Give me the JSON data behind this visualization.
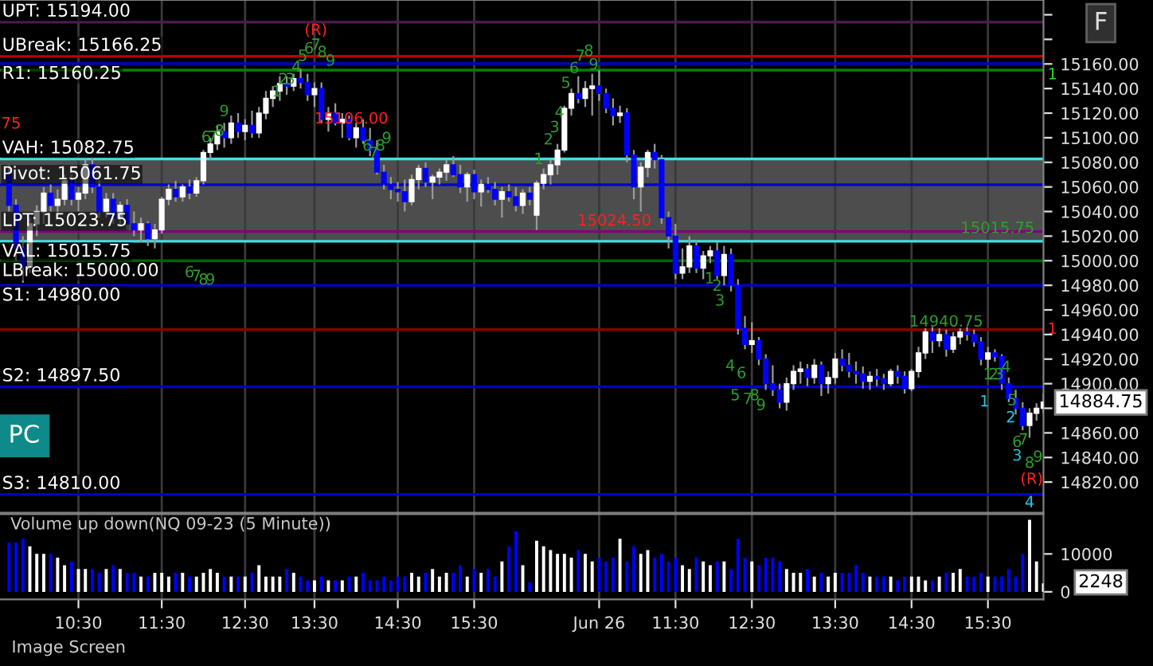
{
  "chart_data": [
    {
      "type": "candlestick",
      "categories": [
        null,
        null,
        null,
        null,
        null,
        null,
        null,
        null,
        null,
        null,
        null,
        null,
        null,
        null,
        null,
        null,
        null,
        null,
        null,
        null,
        null,
        null,
        null,
        null,
        null,
        null,
        null,
        null,
        null,
        null,
        null,
        null,
        null,
        null,
        null,
        null,
        null,
        null,
        null,
        null,
        null,
        null,
        null,
        null,
        null,
        null,
        null,
        null,
        null,
        null,
        null,
        null,
        null,
        null,
        null,
        null,
        null,
        null,
        null,
        null,
        null,
        null,
        null,
        null,
        null,
        null,
        null,
        null,
        null,
        null,
        null,
        null,
        null,
        null,
        null,
        null,
        null,
        null,
        null,
        null,
        null,
        null,
        null,
        null,
        null,
        null,
        null,
        null,
        null,
        null,
        null,
        null,
        null,
        null,
        null,
        null,
        null,
        null,
        null,
        null,
        null,
        null,
        null,
        null,
        null,
        null,
        null,
        null,
        null,
        null,
        null,
        null,
        null,
        null,
        null,
        null,
        null,
        null,
        null,
        null,
        null,
        null,
        null,
        null,
        null,
        null,
        null,
        null,
        null,
        null,
        null,
        null,
        null,
        null,
        null,
        null,
        null,
        null,
        null,
        null,
        null,
        null,
        null,
        null,
        null,
        null,
        null,
        null,
        null,
        null
      ],
      "ohlc": [
        [
          15070,
          15078,
          15040,
          15045
        ],
        [
          15045,
          15050,
          15000,
          15010
        ],
        [
          15010,
          15020,
          14982,
          14995
        ],
        [
          14995,
          15035,
          14990,
          15030
        ],
        [
          15030,
          15045,
          15020,
          15040
        ],
        [
          15040,
          15060,
          15030,
          15055
        ],
        [
          15055,
          15062,
          15040,
          15045
        ],
        [
          15045,
          15058,
          15035,
          15050
        ],
        [
          15050,
          15070,
          15045,
          15065
        ],
        [
          15065,
          15070,
          15045,
          15050
        ],
        [
          15050,
          15060,
          15040,
          15055
        ],
        [
          15055,
          15082,
          15050,
          15078
        ],
        [
          15078,
          15084,
          15055,
          15060
        ],
        [
          15060,
          15065,
          15035,
          15040
        ],
        [
          15040,
          15055,
          15035,
          15050
        ],
        [
          15050,
          15055,
          15030,
          15035
        ],
        [
          15035,
          15048,
          15028,
          15045
        ],
        [
          15045,
          15050,
          15025,
          15030
        ],
        [
          15030,
          15040,
          15020,
          15025
        ],
        [
          15025,
          15035,
          15015,
          15030
        ],
        [
          15030,
          15032,
          15012,
          15018
        ],
        [
          15018,
          15030,
          15010,
          15025
        ],
        [
          15025,
          15052,
          15022,
          15050
        ],
        [
          15050,
          15062,
          15045,
          15058
        ],
        [
          15058,
          15065,
          15048,
          15052
        ],
        [
          15052,
          15062,
          15048,
          15060
        ],
        [
          15060,
          15066,
          15050,
          15055
        ],
        [
          15055,
          15068,
          15052,
          15065
        ],
        [
          15065,
          15090,
          15062,
          15088
        ],
        [
          15088,
          15100,
          15082,
          15095
        ],
        [
          15095,
          15110,
          15090,
          15105
        ],
        [
          15105,
          15112,
          15092,
          15100
        ],
        [
          15100,
          15118,
          15095,
          15112
        ],
        [
          15112,
          15120,
          15100,
          15105
        ],
        [
          15105,
          15115,
          15098,
          15110
        ],
        [
          15110,
          15122,
          15100,
          15104
        ],
        [
          15104,
          15125,
          15100,
          15120
        ],
        [
          15120,
          15138,
          15115,
          15132
        ],
        [
          15132,
          15142,
          15125,
          15138
        ],
        [
          15138,
          15150,
          15130,
          15144
        ],
        [
          15144,
          15150,
          15135,
          15142
        ],
        [
          15142,
          15152,
          15138,
          15148
        ],
        [
          15148,
          15156,
          15140,
          15145
        ],
        [
          15145,
          15152,
          15130,
          15135
        ],
        [
          15135,
          15145,
          15125,
          15140
        ],
        [
          15140,
          15145,
          15112,
          15115
        ],
        [
          15115,
          15125,
          15105,
          15120
        ],
        [
          15120,
          15128,
          15110,
          15112
        ],
        [
          15112,
          15120,
          15100,
          15115
        ],
        [
          15115,
          15118,
          15098,
          15100
        ],
        [
          15100,
          15112,
          15092,
          15108
        ],
        [
          15108,
          15115,
          15095,
          15098
        ],
        [
          15098,
          15108,
          15085,
          15090
        ],
        [
          15090,
          15098,
          15070,
          15072
        ],
        [
          15072,
          15078,
          15058,
          15062
        ],
        [
          15062,
          15068,
          15050,
          15058
        ],
        [
          15058,
          15064,
          15048,
          15056
        ],
        [
          15056,
          15066,
          15040,
          15048
        ],
        [
          15048,
          15070,
          15045,
          15066
        ],
        [
          15066,
          15078,
          15058,
          15075
        ],
        [
          15075,
          15080,
          15060,
          15064
        ],
        [
          15064,
          15070,
          15050,
          15068
        ],
        [
          15068,
          15075,
          15062,
          15072
        ],
        [
          15072,
          15082,
          15065,
          15078
        ],
        [
          15078,
          15085,
          15068,
          15070
        ],
        [
          15070,
          15078,
          15055,
          15060
        ],
        [
          15060,
          15072,
          15048,
          15070
        ],
        [
          15070,
          15074,
          15050,
          15056
        ],
        [
          15056,
          15066,
          15044,
          15062
        ],
        [
          15062,
          15068,
          15055,
          15058
        ],
        [
          15058,
          15064,
          15045,
          15050
        ],
        [
          15050,
          15060,
          15035,
          15056
        ],
        [
          15056,
          15062,
          15048,
          15052
        ],
        [
          15052,
          15060,
          15040,
          15045
        ],
        [
          15045,
          15058,
          15038,
          15055
        ],
        [
          15055,
          15060,
          15045,
          15050
        ],
        [
          15037,
          15065,
          15025,
          15063
        ],
        [
          15063,
          15075,
          15058,
          15070
        ],
        [
          15070,
          15082,
          15062,
          15078
        ],
        [
          15078,
          15095,
          15070,
          15090
        ],
        [
          15090,
          15126,
          15088,
          15124
        ],
        [
          15124,
          15140,
          15118,
          15136
        ],
        [
          15136,
          15150,
          15128,
          15132
        ],
        [
          15132,
          15146,
          15125,
          15140
        ],
        [
          15140,
          15152,
          15118,
          15142
        ],
        [
          15142,
          15155,
          15130,
          15136
        ],
        [
          15136,
          15140,
          15120,
          15124
        ],
        [
          15124,
          15132,
          15110,
          15118
        ],
        [
          15118,
          15126,
          15112,
          15120
        ],
        [
          15120,
          15124,
          15080,
          15086
        ],
        [
          15086,
          15090,
          15050,
          15060
        ],
        [
          15060,
          15080,
          15040,
          15076
        ],
        [
          15076,
          15090,
          15068,
          15088
        ],
        [
          15088,
          15095,
          15075,
          15082
        ],
        [
          15082,
          15086,
          15030,
          15035
        ],
        [
          15035,
          15040,
          15010,
          15020
        ],
        [
          15020,
          15030,
          14985,
          14990
        ],
        [
          14990,
          15010,
          14985,
          14995
        ],
        [
          14995,
          15020,
          14990,
          15012
        ],
        [
          15012,
          15016,
          14990,
          14994
        ],
        [
          14994,
          15008,
          14985,
          15004
        ],
        [
          15004,
          15012,
          14998,
          15008
        ],
        [
          15008,
          15015,
          14985,
          14988
        ],
        [
          14988,
          15012,
          14980,
          15005
        ],
        [
          15005,
          15010,
          14975,
          14980
        ],
        [
          14980,
          14985,
          14940,
          14945
        ],
        [
          14945,
          14955,
          14928,
          14932
        ],
        [
          14932,
          14950,
          14925,
          14935
        ],
        [
          14935,
          14938,
          14915,
          14920
        ],
        [
          14920,
          14924,
          14895,
          14900
        ],
        [
          14900,
          14915,
          14890,
          14895
        ],
        [
          14895,
          14900,
          14880,
          14885
        ],
        [
          14885,
          14905,
          14878,
          14900
        ],
        [
          14900,
          14915,
          14895,
          14910
        ],
        [
          14910,
          14918,
          14900,
          14912
        ],
        [
          14912,
          14916,
          14898,
          14905
        ],
        [
          14905,
          14920,
          14900,
          14915
        ],
        [
          14915,
          14918,
          14890,
          14900
        ],
        [
          14900,
          14910,
          14892,
          14905
        ],
        [
          14905,
          14925,
          14900,
          14920
        ],
        [
          14920,
          14928,
          14910,
          14915
        ],
        [
          14915,
          14925,
          14905,
          14910
        ],
        [
          14910,
          14918,
          14900,
          14908
        ],
        [
          14908,
          14914,
          14896,
          14902
        ],
        [
          14902,
          14910,
          14895,
          14906
        ],
        [
          14906,
          14912,
          14898,
          14904
        ],
        [
          14904,
          14908,
          14895,
          14900
        ],
        [
          14900,
          14912,
          14898,
          14910
        ],
        [
          14910,
          14915,
          14900,
          14906
        ],
        [
          14906,
          14910,
          14892,
          14896
        ],
        [
          14896,
          14912,
          14894,
          14910
        ],
        [
          14910,
          14930,
          14905,
          14925
        ],
        [
          14925,
          14945,
          14920,
          14942
        ],
        [
          14942,
          14946,
          14925,
          14935
        ],
        [
          14935,
          14945,
          14930,
          14940
        ],
        [
          14940,
          14944,
          14922,
          14928
        ],
        [
          14928,
          14942,
          14925,
          14938
        ],
        [
          14938,
          14945,
          14932,
          14942
        ],
        [
          14942,
          14946,
          14935,
          14940
        ],
        [
          14940,
          14944,
          14930,
          14934
        ],
        [
          14934,
          14938,
          14915,
          14920
        ],
        [
          14920,
          14930,
          14912,
          14925
        ],
        [
          14925,
          14928,
          14918,
          14922
        ],
        [
          14922,
          14924,
          14895,
          14900
        ],
        [
          14900,
          14905,
          14885,
          14888
        ],
        [
          14888,
          14895,
          14875,
          14880
        ],
        [
          14880,
          14885,
          14862,
          14866
        ],
        [
          14866,
          14880,
          14856,
          14876
        ],
        [
          14876,
          14884,
          14870,
          14880
        ],
        [
          14880,
          14892,
          14876,
          14885
        ]
      ],
      "colors": [
        "#0000ff",
        "#0000ff",
        "#0000ff",
        "#ffffff",
        "#ffffff",
        "#ffffff",
        "#0000ff",
        "#ffffff",
        "#ffffff",
        "#0000ff",
        "#ffffff",
        "#ffffff",
        "#0000ff",
        "#0000ff",
        "#ffffff",
        "#0000ff",
        "#ffffff",
        "#0000ff",
        "#0000ff",
        "#ffffff",
        "#0000ff",
        "#ffffff",
        "#ffffff",
        "#ffffff",
        "#0000ff",
        "#ffffff",
        "#0000ff",
        "#ffffff",
        "#ffffff",
        "#ffffff",
        "#ffffff",
        "#0000ff",
        "#ffffff",
        "#0000ff",
        "#ffffff",
        "#0000ff",
        "#ffffff",
        "#ffffff",
        "#ffffff",
        "#ffffff",
        "#0000ff",
        "#ffffff",
        "#0000ff",
        "#0000ff",
        "#ffffff",
        "#0000ff",
        "#ffffff",
        "#0000ff",
        "#ffffff",
        "#0000ff",
        "#ffffff",
        "#0000ff",
        "#0000ff",
        "#0000ff",
        "#0000ff",
        "#0000ff",
        "#0000ff",
        "#0000ff",
        "#ffffff",
        "#ffffff",
        "#0000ff",
        "#ffffff",
        "#ffffff",
        "#ffffff",
        "#0000ff",
        "#0000ff",
        "#ffffff",
        "#0000ff",
        "#ffffff",
        "#0000ff",
        "#0000ff",
        "#ffffff",
        "#0000ff",
        "#0000ff",
        "#ffffff",
        "#0000ff",
        "#ffffff",
        "#ffffff",
        "#ffffff",
        "#ffffff",
        "#ffffff",
        "#ffffff",
        "#0000ff",
        "#ffffff",
        "#ffffff",
        "#0000ff",
        "#0000ff",
        "#0000ff",
        "#ffffff",
        "#0000ff",
        "#0000ff",
        "#ffffff",
        "#ffffff",
        "#0000ff",
        "#0000ff",
        "#0000ff",
        "#0000ff",
        "#ffffff",
        "#ffffff",
        "#0000ff",
        "#ffffff",
        "#ffffff",
        "#0000ff",
        "#ffffff",
        "#0000ff",
        "#0000ff",
        "#0000ff",
        "#ffffff",
        "#0000ff",
        "#0000ff",
        "#0000ff",
        "#0000ff",
        "#ffffff",
        "#ffffff",
        "#ffffff",
        "#0000ff",
        "#ffffff",
        "#0000ff",
        "#ffffff",
        "#ffffff",
        "#0000ff",
        "#0000ff",
        "#0000ff",
        "#0000ff",
        "#ffffff",
        "#0000ff",
        "#0000ff",
        "#ffffff",
        "#0000ff",
        "#0000ff",
        "#ffffff",
        "#ffffff",
        "#ffffff",
        "#0000ff",
        "#ffffff",
        "#0000ff",
        "#ffffff",
        "#ffffff",
        "#0000ff",
        "#0000ff",
        "#0000ff",
        "#ffffff",
        "#0000ff",
        "#0000ff",
        "#0000ff",
        "#0000ff",
        "#0000ff",
        "#ffffff",
        "#ffffff",
        "#ffffff"
      ],
      "tick_labels": "y",
      "ylim": [
        14795,
        15212
      ],
      "yticks": [
        {
          "value": 14820,
          "label": "14820.00"
        },
        {
          "value": 14840,
          "label": "14840.00"
        },
        {
          "value": 14860,
          "label": "14860.00"
        },
        {
          "value": 14880,
          "label": null
        },
        {
          "value": 14900,
          "label": "14900.00"
        },
        {
          "value": 14920,
          "label": "14920.00"
        },
        {
          "value": 14940,
          "label": "14940.00"
        },
        {
          "value": 14960,
          "label": "14960.00"
        },
        {
          "value": 14980,
          "label": "14980.00"
        },
        {
          "value": 15000,
          "label": "15000.00"
        },
        {
          "value": 15020,
          "label": "15020.00"
        },
        {
          "value": 15040,
          "label": "15040.00"
        },
        {
          "value": 15060,
          "label": "15060.00"
        },
        {
          "value": 15080,
          "label": "15080.00"
        },
        {
          "value": 15100,
          "label": "15100.00"
        },
        {
          "value": 15120,
          "label": "15120.00"
        },
        {
          "value": 15140,
          "label": "15140.00"
        },
        {
          "value": 15160,
          "label": "15160.00"
        },
        {
          "value": 15180,
          "label": null
        },
        {
          "value": 15200,
          "label": null
        }
      ],
      "grid": "x",
      "bands": [
        {
          "axis": "y",
          "from": 15015.75,
          "to": 15082.75,
          "color": "#4d4d4d"
        }
      ],
      "ref_lines": [
        {
          "axis": "y",
          "value": 15194.0,
          "label": "UPT: 15194.00",
          "color": "#4b1a4b"
        },
        {
          "axis": "y",
          "value": 15166.25,
          "label": "UBreak: 15166.25",
          "color": "#c00000"
        },
        {
          "axis": "y",
          "value": 15160.25,
          "label": "R1: 15160.25",
          "color": "#0000cc"
        },
        {
          "axis": "y",
          "value": 15155,
          "color": "#008000"
        },
        {
          "axis": "y",
          "value": 15082.75,
          "label": "VAH: 15082.75",
          "color": "#40e0e0"
        },
        {
          "axis": "y",
          "value": 15061.75,
          "label": "Pivot: 15061.75",
          "color": "#0000cc"
        },
        {
          "axis": "y",
          "value": 15023.75,
          "label": "LPT: 15023.75",
          "color": "#800080"
        },
        {
          "axis": "y",
          "value": 15015.75,
          "label": "VAL: 15015.75",
          "color": "#40e0e0"
        },
        {
          "axis": "y",
          "value": 15000.0,
          "label": "LBreak: 15000.00",
          "color": "#006400"
        },
        {
          "axis": "y",
          "value": 14980.0,
          "label": "S1: 14980.00",
          "color": "#0000cc"
        },
        {
          "axis": "y",
          "value": 14944,
          "color": "#8b0000"
        },
        {
          "axis": "y",
          "value": 14897.5,
          "label": "S2: 14897.50",
          "color": "#0000cc"
        },
        {
          "axis": "y",
          "value": 14810.0,
          "label": "S3: 14810.00",
          "color": "#0000cc"
        }
      ],
      "annotations": [
        "(R)",
        "1",
        "2",
        "3",
        "4",
        "5",
        "6",
        "7",
        "8",
        "9",
        "6",
        "7",
        "8",
        "9",
        "15106.00",
        "6",
        "7",
        "8",
        "9",
        "6",
        "7",
        "8",
        "9",
        "75",
        "1",
        "2",
        "3",
        "4",
        "5",
        "6",
        "7",
        "8",
        "9",
        "15024.50",
        "1",
        "2",
        "3",
        "4",
        "5",
        "6",
        "7",
        "8",
        "9",
        "14940.75",
        "15015.75",
        "1",
        "2",
        "3",
        "4",
        "5",
        "6",
        "7",
        "8",
        "9",
        "1",
        "2",
        "3",
        "4",
        "(R)",
        "1",
        "1",
        "14884.75",
        "PC",
        "F"
      ]
    },
    {
      "type": "bar",
      "title": "Volume up down(NQ 09-23 (5 Minute))",
      "categories": [
        null,
        null,
        null,
        null,
        null,
        null,
        null,
        null,
        null,
        null,
        "10:30",
        null,
        null,
        null,
        null,
        null,
        null,
        null,
        null,
        null,
        null,
        null,
        "11:30",
        null,
        null,
        null,
        null,
        null,
        null,
        null,
        null,
        null,
        null,
        null,
        "12:30",
        null,
        null,
        null,
        null,
        null,
        null,
        null,
        null,
        null,
        "13:30",
        null,
        null,
        null,
        null,
        null,
        null,
        null,
        null,
        null,
        null,
        null,
        "14:30",
        null,
        null,
        null,
        null,
        null,
        null,
        null,
        null,
        null,
        null,
        "15:30",
        null,
        null,
        null,
        null,
        null,
        null,
        null,
        null,
        null,
        null,
        null,
        null,
        null,
        null,
        null,
        null,
        null,
        "Jun 26",
        null,
        null,
        null,
        null,
        null,
        null,
        null,
        null,
        null,
        null,
        "11:30",
        null,
        null,
        null,
        null,
        null,
        null,
        null,
        null,
        null,
        null,
        "12:30",
        null,
        null,
        null,
        null,
        null,
        null,
        null,
        null,
        null,
        null,
        null,
        "13:30",
        null,
        null,
        null,
        null,
        null,
        null,
        null,
        null,
        null,
        null,
        "14:30",
        null,
        null,
        null,
        null,
        null,
        null,
        null,
        null,
        null,
        null,
        "15:30",
        null,
        null,
        null,
        null,
        null,
        null,
        null,
        null
      ],
      "values": [
        13000,
        13000,
        14000,
        12000,
        10000,
        10000,
        10000,
        9000,
        7000,
        8000,
        6000,
        6000,
        6000,
        5000,
        6000,
        7000,
        6000,
        5000,
        5000,
        4000,
        4000,
        5000,
        5000,
        4000,
        5000,
        5000,
        4000,
        4000,
        5000,
        6000,
        5000,
        4000,
        4000,
        4000,
        4000,
        5000,
        7000,
        4000,
        4000,
        4000,
        6000,
        5000,
        4000,
        3000,
        3000,
        4000,
        3000,
        3000,
        3000,
        4000,
        4000,
        5000,
        3000,
        3000,
        4000,
        3000,
        4000,
        4000,
        5000,
        4000,
        5000,
        6000,
        4000,
        5000,
        5000,
        7000,
        4000,
        6000,
        5000,
        6000,
        4000,
        8000,
        12000,
        16000,
        7000,
        2500,
        13500,
        12000,
        11000,
        10000,
        10000,
        9000,
        11000,
        10000,
        8000,
        9000,
        8000,
        9000,
        14000,
        8000,
        12000,
        10000,
        11000,
        9000,
        10000,
        8000,
        9000,
        7000,
        6000,
        9000,
        8000,
        7000,
        8000,
        8000,
        6000,
        14000,
        9000,
        8000,
        7000,
        9000,
        9000,
        8000,
        6000,
        5000,
        5000,
        6000,
        4000,
        5000,
        4000,
        5000,
        5000,
        5000,
        7000,
        5000,
        4000,
        4000,
        4000,
        4000,
        3000,
        4000,
        4000,
        4000,
        3000,
        3000,
        4000,
        5000,
        5000,
        6000,
        4000,
        4000,
        5000,
        4000,
        4000,
        4000,
        6000,
        4000,
        10000,
        19000,
        8000,
        2248
      ],
      "colors": [
        "#0000ff",
        "#0000ff",
        "#0000ff",
        "#ffffff",
        "#ffffff",
        "#ffffff",
        "#0000ff",
        "#ffffff",
        "#ffffff",
        "#0000ff",
        "#ffffff",
        "#ffffff",
        "#0000ff",
        "#0000ff",
        "#ffffff",
        "#0000ff",
        "#ffffff",
        "#0000ff",
        "#0000ff",
        "#ffffff",
        "#0000ff",
        "#ffffff",
        "#ffffff",
        "#ffffff",
        "#0000ff",
        "#ffffff",
        "#0000ff",
        "#ffffff",
        "#ffffff",
        "#ffffff",
        "#ffffff",
        "#0000ff",
        "#ffffff",
        "#0000ff",
        "#ffffff",
        "#0000ff",
        "#ffffff",
        "#ffffff",
        "#ffffff",
        "#ffffff",
        "#0000ff",
        "#ffffff",
        "#0000ff",
        "#0000ff",
        "#ffffff",
        "#0000ff",
        "#ffffff",
        "#0000ff",
        "#ffffff",
        "#0000ff",
        "#ffffff",
        "#0000ff",
        "#0000ff",
        "#0000ff",
        "#0000ff",
        "#0000ff",
        "#0000ff",
        "#0000ff",
        "#ffffff",
        "#ffffff",
        "#0000ff",
        "#ffffff",
        "#ffffff",
        "#ffffff",
        "#0000ff",
        "#0000ff",
        "#ffffff",
        "#0000ff",
        "#ffffff",
        "#0000ff",
        "#0000ff",
        "#ffffff",
        "#0000ff",
        "#0000ff",
        "#ffffff",
        "#0000ff",
        "#ffffff",
        "#ffffff",
        "#ffffff",
        "#ffffff",
        "#ffffff",
        "#ffffff",
        "#0000ff",
        "#ffffff",
        "#ffffff",
        "#0000ff",
        "#0000ff",
        "#0000ff",
        "#ffffff",
        "#0000ff",
        "#0000ff",
        "#ffffff",
        "#ffffff",
        "#0000ff",
        "#0000ff",
        "#0000ff",
        "#0000ff",
        "#ffffff",
        "#ffffff",
        "#0000ff",
        "#ffffff",
        "#ffffff",
        "#0000ff",
        "#ffffff",
        "#0000ff",
        "#0000ff",
        "#0000ff",
        "#ffffff",
        "#0000ff",
        "#0000ff",
        "#0000ff",
        "#0000ff",
        "#ffffff",
        "#ffffff",
        "#ffffff",
        "#0000ff",
        "#ffffff",
        "#0000ff",
        "#ffffff",
        "#ffffff",
        "#0000ff",
        "#0000ff",
        "#0000ff",
        "#0000ff",
        "#ffffff",
        "#0000ff",
        "#0000ff",
        "#ffffff",
        "#0000ff",
        "#0000ff",
        "#ffffff",
        "#ffffff",
        "#ffffff",
        "#0000ff",
        "#ffffff",
        "#0000ff",
        "#ffffff",
        "#ffffff",
        "#0000ff",
        "#0000ff",
        "#0000ff",
        "#ffffff",
        "#0000ff",
        "#0000ff",
        "#0000ff",
        "#0000ff",
        "#0000ff",
        "#ffffff",
        "#ffffff",
        "#ffffff"
      ],
      "ylim": [
        -2000,
        20500
      ],
      "yticks": [
        0,
        10000
      ],
      "grid": "x",
      "annotations": [
        "2248",
        "Image Screen"
      ]
    }
  ]
}
